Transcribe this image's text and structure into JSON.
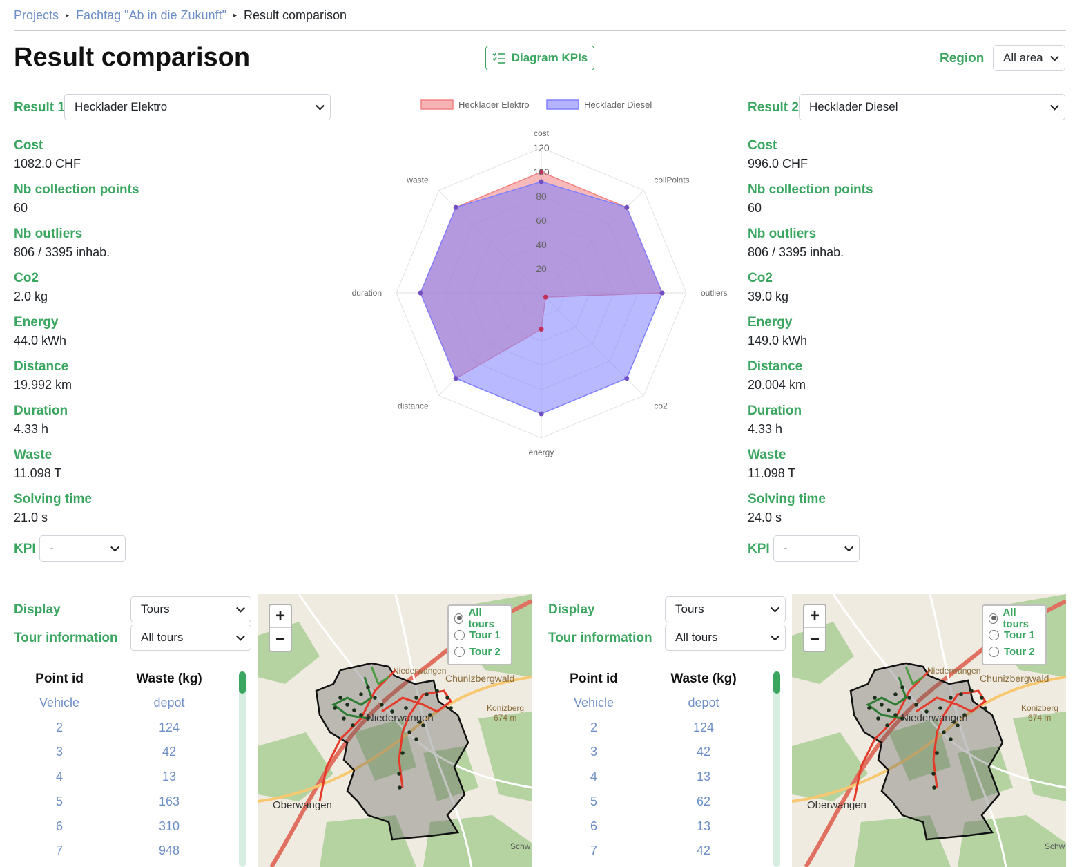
{
  "breadcrumb": {
    "projects": "Projects",
    "project": "Fachtag \"Ab in die Zukunft\"",
    "current": "Result comparison"
  },
  "page_title": "Result comparison",
  "diagram_kpis_button": "Diagram KPIs",
  "region": {
    "label": "Region",
    "value": "All area"
  },
  "result1": {
    "label": "Result 1",
    "value": "Hecklader Elektro",
    "metrics": [
      {
        "name": "Cost",
        "value": "1082.0 CHF"
      },
      {
        "name": "Nb collection points",
        "value": "60"
      },
      {
        "name": "Nb outliers",
        "value": "806 / 3395 inhab."
      },
      {
        "name": "Co2",
        "value": "2.0 kg"
      },
      {
        "name": "Energy",
        "value": "44.0 kWh"
      },
      {
        "name": "Distance",
        "value": "19.992 km"
      },
      {
        "name": "Duration",
        "value": "4.33 h"
      },
      {
        "name": "Waste",
        "value": "11.098 T"
      },
      {
        "name": "Solving time",
        "value": "21.0 s"
      }
    ],
    "kpi_label": "KPI",
    "kpi_value": "-"
  },
  "result2": {
    "label": "Result 2",
    "value": "Hecklader Diesel",
    "metrics": [
      {
        "name": "Cost",
        "value": "996.0 CHF"
      },
      {
        "name": "Nb collection points",
        "value": "60"
      },
      {
        "name": "Nb outliers",
        "value": "806 / 3395 inhab."
      },
      {
        "name": "Co2",
        "value": "39.0 kg"
      },
      {
        "name": "Energy",
        "value": "149.0 kWh"
      },
      {
        "name": "Distance",
        "value": "20.004 km"
      },
      {
        "name": "Duration",
        "value": "4.33 h"
      },
      {
        "name": "Waste",
        "value": "11.098 T"
      },
      {
        "name": "Solving time",
        "value": "24.0 s"
      }
    ],
    "kpi_label": "KPI",
    "kpi_value": "-"
  },
  "chart_data": {
    "type": "radar",
    "axes": [
      "cost",
      "collPoints",
      "outliers",
      "co2",
      "energy",
      "distance",
      "duration",
      "waste"
    ],
    "ticks": [
      20,
      40,
      60,
      80,
      100,
      120
    ],
    "range": [
      0,
      120
    ],
    "legend_position": "top",
    "series": [
      {
        "name": "Hecklader Elektro",
        "color": "#f08080",
        "values": [
          100,
          100,
          100,
          5,
          30,
          100,
          100,
          100
        ]
      },
      {
        "name": "Hecklader Diesel",
        "color": "#8080ff",
        "values": [
          92,
          100,
          100,
          100,
          100,
          100,
          100,
          100
        ]
      }
    ]
  },
  "panel1": {
    "display_label": "Display",
    "display_value": "Tours",
    "tour_info_label": "Tour information",
    "tour_info_value": "All tours",
    "col_point": "Point id",
    "col_waste": "Waste (kg)",
    "rows": [
      [
        "Vehicle",
        "depot"
      ],
      [
        "2",
        "124"
      ],
      [
        "3",
        "42"
      ],
      [
        "4",
        "13"
      ],
      [
        "5",
        "163"
      ],
      [
        "6",
        "310"
      ],
      [
        "7",
        "948"
      ]
    ]
  },
  "panel2": {
    "display_label": "Display",
    "display_value": "Tours",
    "tour_info_label": "Tour information",
    "tour_info_value": "All tours",
    "col_point": "Point id",
    "col_waste": "Waste (kg)",
    "rows": [
      [
        "Vehicle",
        "depot"
      ],
      [
        "2",
        "124"
      ],
      [
        "3",
        "42"
      ],
      [
        "4",
        "13"
      ],
      [
        "5",
        "62"
      ],
      [
        "6",
        "13"
      ],
      [
        "7",
        "42"
      ]
    ]
  },
  "map": {
    "zoom_in": "+",
    "zoom_out": "−",
    "tours": [
      "All tours",
      "Tour 1",
      "Tour 2"
    ],
    "selected_tour": "All tours",
    "labels": {
      "town1": "Oberwangen",
      "town2": "Niederwangen",
      "forest": "Chunizbergwald",
      "hill": "Konizberg",
      "hill_alt": "674 m",
      "town3": "Niederwangen",
      "edge": "Schw"
    }
  }
}
